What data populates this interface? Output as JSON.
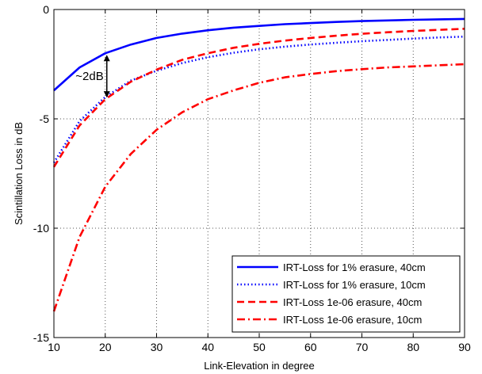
{
  "chart_data": {
    "type": "line",
    "xlabel": "Link-Elevation in degree",
    "ylabel": "Scintillation Loss in dB",
    "xlim": [
      10,
      90
    ],
    "ylim": [
      -15,
      0
    ],
    "xticks": [
      10,
      20,
      30,
      40,
      50,
      60,
      70,
      80,
      90
    ],
    "yticks": [
      0,
      -5,
      -10,
      -15
    ],
    "grid": true,
    "legend_position": "bottom-right",
    "x": [
      10,
      15,
      20,
      25,
      30,
      35,
      40,
      45,
      50,
      55,
      60,
      65,
      70,
      75,
      80,
      85,
      90
    ],
    "series": [
      {
        "name": "IRT-Loss for 1% erasure, 40cm",
        "color": "#0000ff",
        "style": "solid",
        "values": [
          -3.7,
          -2.65,
          -2.0,
          -1.6,
          -1.3,
          -1.1,
          -0.95,
          -0.83,
          -0.75,
          -0.67,
          -0.62,
          -0.57,
          -0.53,
          -0.5,
          -0.47,
          -0.45,
          -0.43
        ]
      },
      {
        "name": "IRT-Loss for 1% erasure, 10cm",
        "color": "#0000ff",
        "style": "dotted",
        "values": [
          -7.0,
          -5.1,
          -4.0,
          -3.25,
          -2.8,
          -2.45,
          -2.18,
          -1.98,
          -1.82,
          -1.7,
          -1.6,
          -1.52,
          -1.45,
          -1.39,
          -1.33,
          -1.28,
          -1.24
        ]
      },
      {
        "name": "IRT-Loss 1e-06 erasure, 40cm",
        "color": "#ff0000",
        "style": "dashed",
        "values": [
          -7.2,
          -5.3,
          -4.1,
          -3.3,
          -2.75,
          -2.3,
          -2.0,
          -1.75,
          -1.57,
          -1.42,
          -1.3,
          -1.2,
          -1.11,
          -1.04,
          -0.98,
          -0.93,
          -0.88
        ]
      },
      {
        "name": "IRT-Loss 1e-06 erasure, 10cm",
        "color": "#ff0000",
        "style": "dashdot",
        "values": [
          -13.8,
          -10.4,
          -8.1,
          -6.6,
          -5.5,
          -4.7,
          -4.1,
          -3.7,
          -3.35,
          -3.1,
          -2.95,
          -2.82,
          -2.73,
          -2.65,
          -2.6,
          -2.55,
          -2.5
        ]
      }
    ],
    "annotations": [
      {
        "text": "~2dB",
        "x": 20,
        "y_top": -2.0,
        "y_bottom": -4.1
      }
    ]
  }
}
